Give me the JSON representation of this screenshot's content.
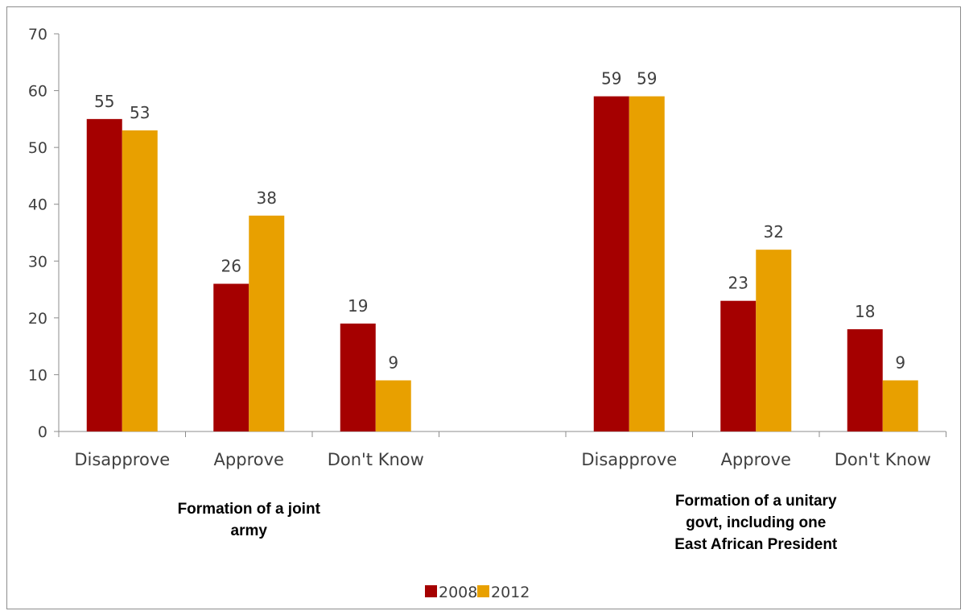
{
  "chart_data": {
    "type": "bar",
    "ylim": [
      0,
      70
    ],
    "yticks": [
      0,
      10,
      20,
      30,
      40,
      50,
      60,
      70
    ],
    "grid": false,
    "legend_position": "bottom",
    "groups": [
      {
        "label_lines": [
          "Formation of a joint",
          "army"
        ],
        "categories": [
          "Disapprove",
          "Approve",
          "Don't Know"
        ]
      },
      {
        "label_lines": [
          "Formation of a unitary",
          "govt, including one",
          "East African President"
        ],
        "categories": [
          "Disapprove",
          "Approve",
          "Don't Know"
        ]
      }
    ],
    "series": [
      {
        "name": "2008",
        "color": "#A50000",
        "values": [
          55,
          26,
          19,
          59,
          23,
          18
        ]
      },
      {
        "name": "2012",
        "color": "#E8A000",
        "values": [
          53,
          38,
          9,
          59,
          32,
          9
        ]
      }
    ]
  }
}
